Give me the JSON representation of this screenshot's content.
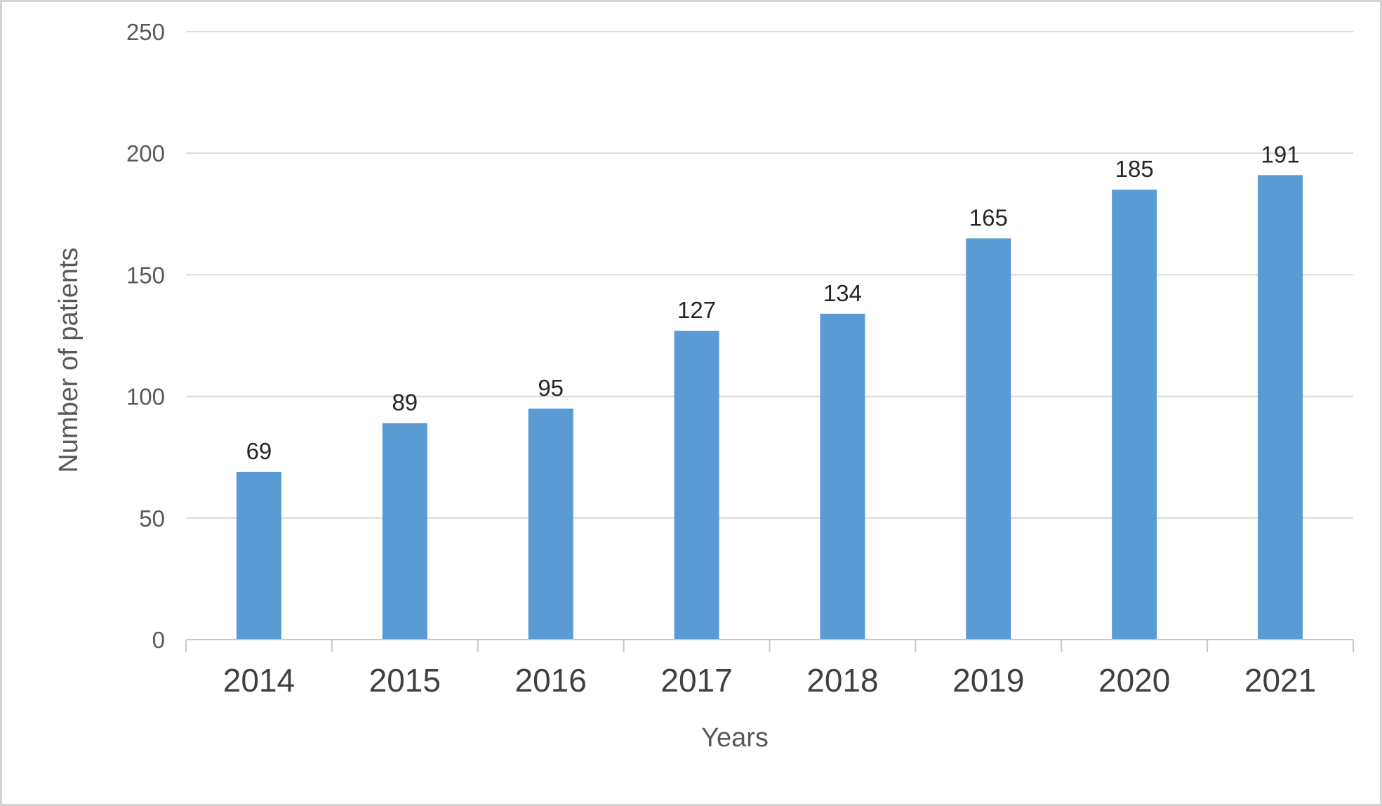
{
  "chart_data": {
    "type": "bar",
    "categories": [
      "2014",
      "2015",
      "2016",
      "2017",
      "2018",
      "2019",
      "2020",
      "2021"
    ],
    "values": [
      69,
      89,
      95,
      127,
      134,
      165,
      185,
      191
    ],
    "data_labels": [
      "69",
      "89",
      "95",
      "127",
      "134",
      "165",
      "185",
      "191"
    ],
    "title": "",
    "xlabel": "Years",
    "ylabel": "Number of patients",
    "ylim": [
      0,
      250
    ],
    "yticks": [
      0,
      50,
      100,
      150,
      200,
      250
    ],
    "ytick_labels": [
      "0",
      "50",
      "100",
      "150",
      "200",
      "250"
    ],
    "grid": true,
    "legend": "none",
    "bar_color": "#5b9bd5"
  }
}
